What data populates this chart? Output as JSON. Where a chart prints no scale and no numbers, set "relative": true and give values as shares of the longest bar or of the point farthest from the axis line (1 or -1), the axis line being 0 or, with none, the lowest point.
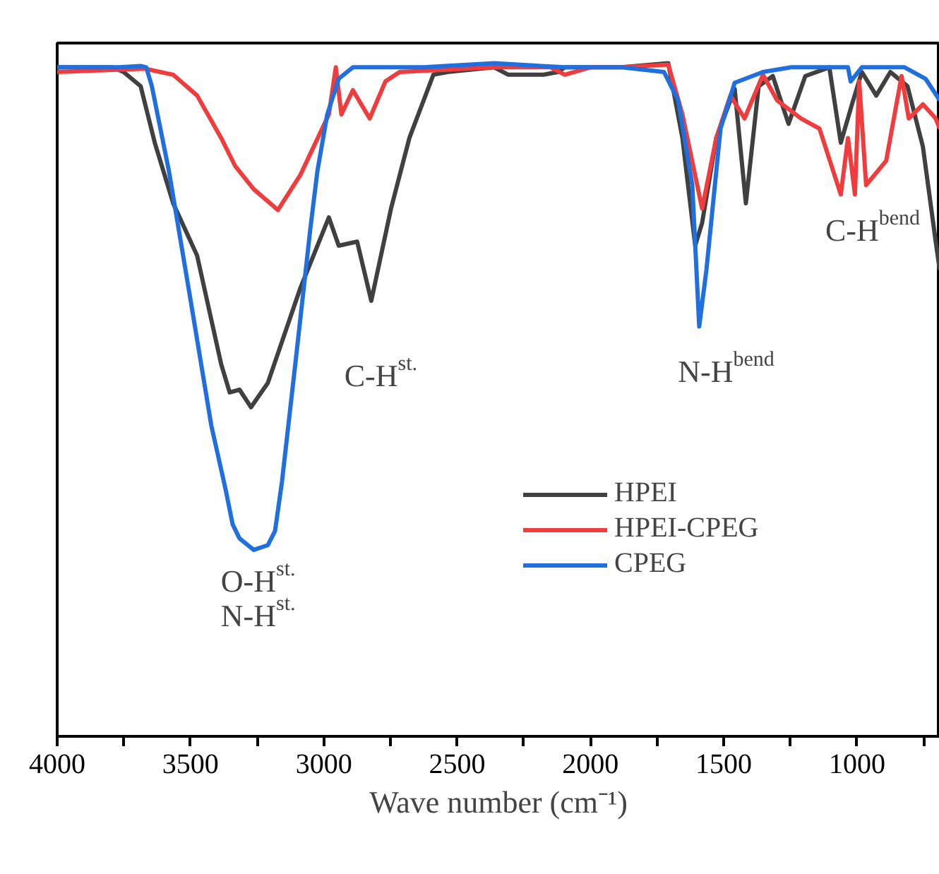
{
  "chart_data": {
    "type": "line",
    "relative": true,
    "xlabel": "Wave number (cm⁻¹)",
    "xlim": [
      4000,
      690
    ],
    "xticks": [
      4000,
      {
        "value": 3750,
        "label": null
      },
      3500,
      {
        "value": 3250,
        "label": null
      },
      3000,
      {
        "value": 2750,
        "label": null
      },
      2500,
      {
        "value": 2250,
        "label": null
      },
      2000,
      {
        "value": 1750,
        "label": null
      },
      1500,
      {
        "value": 1250,
        "label": null
      },
      1000,
      {
        "value": 750,
        "label": null
      }
    ],
    "grid": false,
    "legend": "bottom right",
    "marker": "none",
    "line_style": "solid",
    "series": [
      {
        "name": "HPEI",
        "color": "#404040",
        "x": [
          4000,
          3793,
          3751,
          3687,
          3634,
          3565,
          3475,
          3385,
          3353,
          3316,
          3273,
          3210,
          3088,
          2981,
          2944,
          2875,
          2822,
          2748,
          2679,
          2589,
          2536,
          2361,
          2308,
          2175,
          2122,
          2096,
          1883,
          1708,
          1655,
          1607,
          1581,
          1528,
          1459,
          1417,
          1369,
          1316,
          1257,
          1194,
          1104,
          1061,
          1019,
          982,
          928,
          875,
          811,
          753,
          705,
          690
        ],
        "values": [
          0.994,
          0.994,
          0.987,
          0.966,
          0.882,
          0.792,
          0.714,
          0.553,
          0.511,
          0.515,
          0.489,
          0.525,
          0.666,
          0.771,
          0.729,
          0.735,
          0.647,
          0.784,
          0.889,
          0.983,
          0.987,
          0.994,
          0.983,
          0.983,
          0.987,
          0.994,
          0.994,
          1.0,
          0.889,
          0.729,
          0.763,
          0.889,
          0.962,
          0.792,
          0.966,
          0.981,
          0.91,
          0.981,
          0.994,
          0.882,
          0.939,
          0.987,
          0.952,
          0.987,
          0.966,
          0.876,
          0.735,
          0.693
        ]
      },
      {
        "name": "HPEI-CPEG",
        "color": "#f03c3c",
        "x": [
          4000,
          3671,
          3565,
          3475,
          3385,
          3332,
          3263,
          3172,
          3088,
          2981,
          2955,
          2934,
          2891,
          2828,
          2769,
          2716,
          2361,
          2150,
          2096,
          2000,
          1883,
          1708,
          1655,
          1581,
          1528,
          1475,
          1422,
          1353,
          1300,
          1210,
          1141,
          1061,
          1034,
          1008,
          992,
          966,
          891,
          833,
          806,
          753,
          705,
          690
        ],
        "values": [
          0.987,
          0.992,
          0.983,
          0.952,
          0.889,
          0.847,
          0.813,
          0.782,
          0.834,
          0.924,
          0.994,
          0.924,
          0.96,
          0.918,
          0.973,
          0.987,
          0.994,
          0.994,
          0.983,
          0.994,
          0.994,
          0.998,
          0.924,
          0.784,
          0.889,
          0.952,
          0.918,
          0.983,
          0.945,
          0.918,
          0.903,
          0.805,
          0.889,
          0.805,
          0.973,
          0.819,
          0.855,
          0.981,
          0.918,
          0.939,
          0.918,
          0.903
        ]
      },
      {
        "name": "CPEG",
        "color": "#1f6fe0",
        "x": [
          4000,
          3767,
          3687,
          3666,
          3645,
          3581,
          3501,
          3422,
          3369,
          3342,
          3316,
          3263,
          3210,
          3183,
          3157,
          3103,
          3050,
          3024,
          2987,
          2944,
          2891,
          2626,
          2361,
          2096,
          1883,
          1724,
          1671,
          1618,
          1592,
          1565,
          1512,
          1459,
          1353,
          1247,
          1034,
          1024,
          982,
          822,
          743,
          690
        ],
        "values": [
          0.994,
          0.994,
          0.996,
          0.994,
          0.966,
          0.84,
          0.651,
          0.462,
          0.368,
          0.315,
          0.294,
          0.277,
          0.284,
          0.305,
          0.378,
          0.567,
          0.756,
          0.84,
          0.924,
          0.977,
          0.994,
          0.994,
          1.0,
          0.994,
          0.994,
          0.987,
          0.945,
          0.819,
          0.609,
          0.693,
          0.903,
          0.971,
          0.987,
          0.994,
          0.994,
          0.973,
          0.994,
          0.994,
          0.977,
          0.945
        ]
      }
    ],
    "annotations": [
      "O-H$^{st.}$",
      "N-H$^{st.}$",
      "C-H$^{st.}$",
      "N-H$^{bend}$",
      "C-H$^{bend}$"
    ]
  }
}
